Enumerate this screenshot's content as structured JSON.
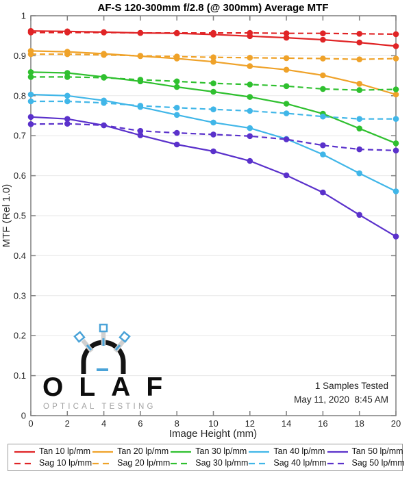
{
  "chart_data": {
    "type": "line",
    "title": "AF-S 120-300mm f/2.8 (@ 300mm) Average MTF",
    "xlabel": "Image Height (mm)",
    "ylabel": "MTF (Rel 1.0)",
    "xlim": [
      0,
      20
    ],
    "ylim": [
      0,
      1
    ],
    "x_ticks": [
      0,
      2,
      4,
      6,
      8,
      10,
      12,
      14,
      16,
      18,
      20
    ],
    "y_ticks": [
      0,
      0.1,
      0.2,
      0.3,
      0.4,
      0.5,
      0.6,
      0.7,
      0.8,
      0.9,
      1
    ],
    "grid": "horizontal",
    "legend_position": "bottom",
    "x": [
      0,
      2,
      4,
      6,
      8,
      10,
      12,
      14,
      16,
      18,
      20
    ],
    "series": [
      {
        "name": "Tan 10 lp/mm",
        "color": "#e02426",
        "style": "solid",
        "values": [
          0.962,
          0.961,
          0.959,
          0.957,
          0.956,
          0.953,
          0.949,
          0.945,
          0.94,
          0.933,
          0.924
        ]
      },
      {
        "name": "Sag 10 lp/mm",
        "color": "#e02426",
        "style": "dashed",
        "values": [
          0.958,
          0.958,
          0.958,
          0.957,
          0.957,
          0.957,
          0.957,
          0.956,
          0.956,
          0.955,
          0.954
        ]
      },
      {
        "name": "Tan 20 lp/mm",
        "color": "#efa229",
        "style": "solid",
        "values": [
          0.912,
          0.91,
          0.905,
          0.899,
          0.893,
          0.885,
          0.874,
          0.865,
          0.851,
          0.83,
          0.803
        ]
      },
      {
        "name": "Sag 20 lp/mm",
        "color": "#efa229",
        "style": "dashed",
        "values": [
          0.904,
          0.904,
          0.902,
          0.9,
          0.898,
          0.896,
          0.895,
          0.894,
          0.893,
          0.891,
          0.893
        ]
      },
      {
        "name": "Tan 30 lp/mm",
        "color": "#2fc02f",
        "style": "solid",
        "values": [
          0.859,
          0.857,
          0.847,
          0.836,
          0.822,
          0.81,
          0.797,
          0.78,
          0.755,
          0.718,
          0.681
        ]
      },
      {
        "name": "Sag 30 lp/mm",
        "color": "#2fc02f",
        "style": "dashed",
        "values": [
          0.847,
          0.847,
          0.845,
          0.84,
          0.836,
          0.831,
          0.828,
          0.824,
          0.817,
          0.814,
          0.816
        ]
      },
      {
        "name": "Tan 40 lp/mm",
        "color": "#40b6e8",
        "style": "solid",
        "values": [
          0.803,
          0.8,
          0.788,
          0.772,
          0.752,
          0.733,
          0.719,
          0.692,
          0.653,
          0.606,
          0.561
        ]
      },
      {
        "name": "Sag 40 lp/mm",
        "color": "#40b6e8",
        "style": "dashed",
        "values": [
          0.786,
          0.786,
          0.782,
          0.775,
          0.77,
          0.766,
          0.762,
          0.756,
          0.748,
          0.742,
          0.742
        ]
      },
      {
        "name": "Tan 50 lp/mm",
        "color": "#5a31cb",
        "style": "solid",
        "values": [
          0.747,
          0.742,
          0.726,
          0.701,
          0.678,
          0.661,
          0.637,
          0.601,
          0.558,
          0.502,
          0.448
        ]
      },
      {
        "name": "Sag 50 lp/mm",
        "color": "#5a31cb",
        "style": "dashed",
        "values": [
          0.729,
          0.73,
          0.726,
          0.712,
          0.707,
          0.703,
          0.699,
          0.691,
          0.676,
          0.666,
          0.663
        ]
      }
    ],
    "annotations": [
      "1 Samples Tested",
      "May 11, 2020  8:45 AM"
    ]
  },
  "logo": {
    "wordmark": "OLAF",
    "tagline": "OPTICAL TESTING",
    "accent_color": "#4aa3d8"
  },
  "style_colors": {
    "axis": "#7f7f7f",
    "grid": "#e7e7e7",
    "tick_text": "#262626"
  }
}
